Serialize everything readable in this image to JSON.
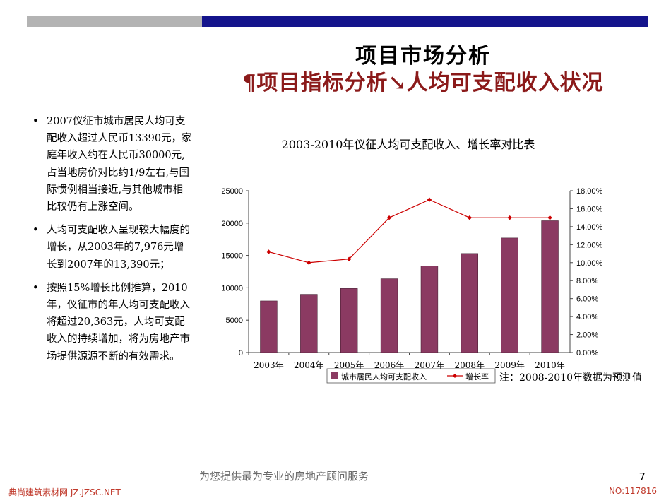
{
  "slide": {
    "title": "项目市场分析",
    "subtitle": "¶项目指标分析↘人均可支配收入状况",
    "bullets": [
      "2007仪征市城市居民人均可支配收入超过人民币13390元，家庭年收入约在人民币30000元,占当地房价对比约1/9左右,与国际惯例相当接近,与其他城市相比较仍有上涨空间。",
      "人均可支配收入呈现较大幅度的增长，从2003年的7,976元增长到2007年的13,390元；",
      "按照15%增长比例推算，2010年，仪征市的年人均可支配收入将超过20,363元，人均可支配收入的持续增加，将为房地产市场提供源源不断的有效需求。"
    ],
    "footer": "为您提供最为专业的房地产顾问服务",
    "page_number": "7",
    "watermark_left": "典尚建筑素材网 JZ.JZSC.NET",
    "watermark_right": "NO:117816"
  },
  "chart_data": {
    "type": "bar",
    "title": "2003-2010年仪征人均可支配收入、增长率对比表",
    "categories": [
      "2003年",
      "2004年",
      "2005年",
      "2006年",
      "2007年",
      "2008年",
      "2009年",
      "2010年"
    ],
    "series": [
      {
        "name": "城市居民人均可支配收入",
        "type": "bar",
        "axis": "left",
        "color": "#8b3a62",
        "values": [
          7976,
          9000,
          9900,
          11400,
          13390,
          15300,
          17700,
          20363
        ]
      },
      {
        "name": "增长率",
        "type": "line",
        "axis": "right",
        "color": "#cc0000",
        "values": [
          11.2,
          10.0,
          10.4,
          15.0,
          17.0,
          15.0,
          15.0,
          15.0
        ]
      }
    ],
    "y_left": {
      "min": 0,
      "max": 25000,
      "ticks": [
        "0",
        "5000",
        "10000",
        "15000",
        "20000",
        "25000"
      ]
    },
    "y_right": {
      "min": 0,
      "max": 18,
      "ticks": [
        "0.00%",
        "2.00%",
        "4.00%",
        "6.00%",
        "8.00%",
        "10.00%",
        "12.00%",
        "14.00%",
        "16.00%",
        "18.00%"
      ]
    },
    "legend_position": "bottom",
    "grid": false,
    "note": "注：2008-2010年数据为预测值"
  }
}
